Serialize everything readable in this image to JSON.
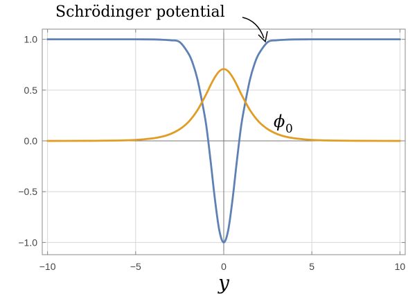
{
  "chart_data": {
    "type": "line",
    "title": "",
    "xlabel": "y",
    "ylabel": "",
    "xlim": [
      -10.3,
      10.3
    ],
    "ylim": [
      -1.12,
      1.1
    ],
    "grid": true,
    "x_ticks": [
      -10,
      -5,
      0,
      5,
      10
    ],
    "x_tick_labels": [
      "−10",
      "−5",
      "0",
      "5",
      "10"
    ],
    "y_ticks": [
      -1.0,
      -0.5,
      0.0,
      0.5,
      1.0
    ],
    "y_tick_labels": [
      "−1.0",
      "−0.5",
      "0.0",
      "0.5",
      "1.0"
    ],
    "series": [
      {
        "color": "#5e81b5",
        "x": [
          -10,
          -8,
          -6,
          -5,
          -4,
          -3.5,
          -3,
          -2.5,
          -2,
          -1.75,
          -1.5,
          -1.25,
          -1,
          -0.75,
          -0.5,
          -0.25,
          0,
          0.25,
          0.5,
          0.75,
          1,
          1.25,
          1.5,
          1.75,
          2,
          2.5,
          3,
          3.5,
          4,
          5,
          6,
          8,
          10
        ],
        "y": [
          1.0,
          1.0,
          1.0,
          1.0,
          0.999,
          0.996,
          0.99,
          0.973,
          0.859,
          0.759,
          0.612,
          0.403,
          0.161,
          -0.191,
          -0.575,
          -0.882,
          -1.0,
          -0.882,
          -0.575,
          -0.191,
          0.161,
          0.403,
          0.612,
          0.759,
          0.859,
          0.973,
          0.99,
          0.996,
          0.999,
          1.0,
          1.0,
          1.0,
          1.0
        ]
      },
      {
        "color": "#e19c24",
        "x": [
          -10,
          -8,
          -6,
          -5,
          -4,
          -3.5,
          -3,
          -2.5,
          -2,
          -1.5,
          -1,
          -0.75,
          -0.5,
          -0.25,
          0,
          0.25,
          0.5,
          0.75,
          1,
          1.5,
          2,
          2.5,
          3,
          3.5,
          4,
          5,
          6,
          8,
          10
        ],
        "y": [
          0.0,
          0.0005,
          0.0035,
          0.0095,
          0.026,
          0.042,
          0.07,
          0.115,
          0.187,
          0.3,
          0.458,
          0.548,
          0.628,
          0.686,
          0.707,
          0.686,
          0.628,
          0.548,
          0.458,
          0.3,
          0.187,
          0.115,
          0.07,
          0.042,
          0.026,
          0.0095,
          0.0035,
          0.0005,
          0.0
        ]
      }
    ],
    "annotations": [
      "Schrödinger potential",
      "ϕ",
      "0"
    ]
  }
}
